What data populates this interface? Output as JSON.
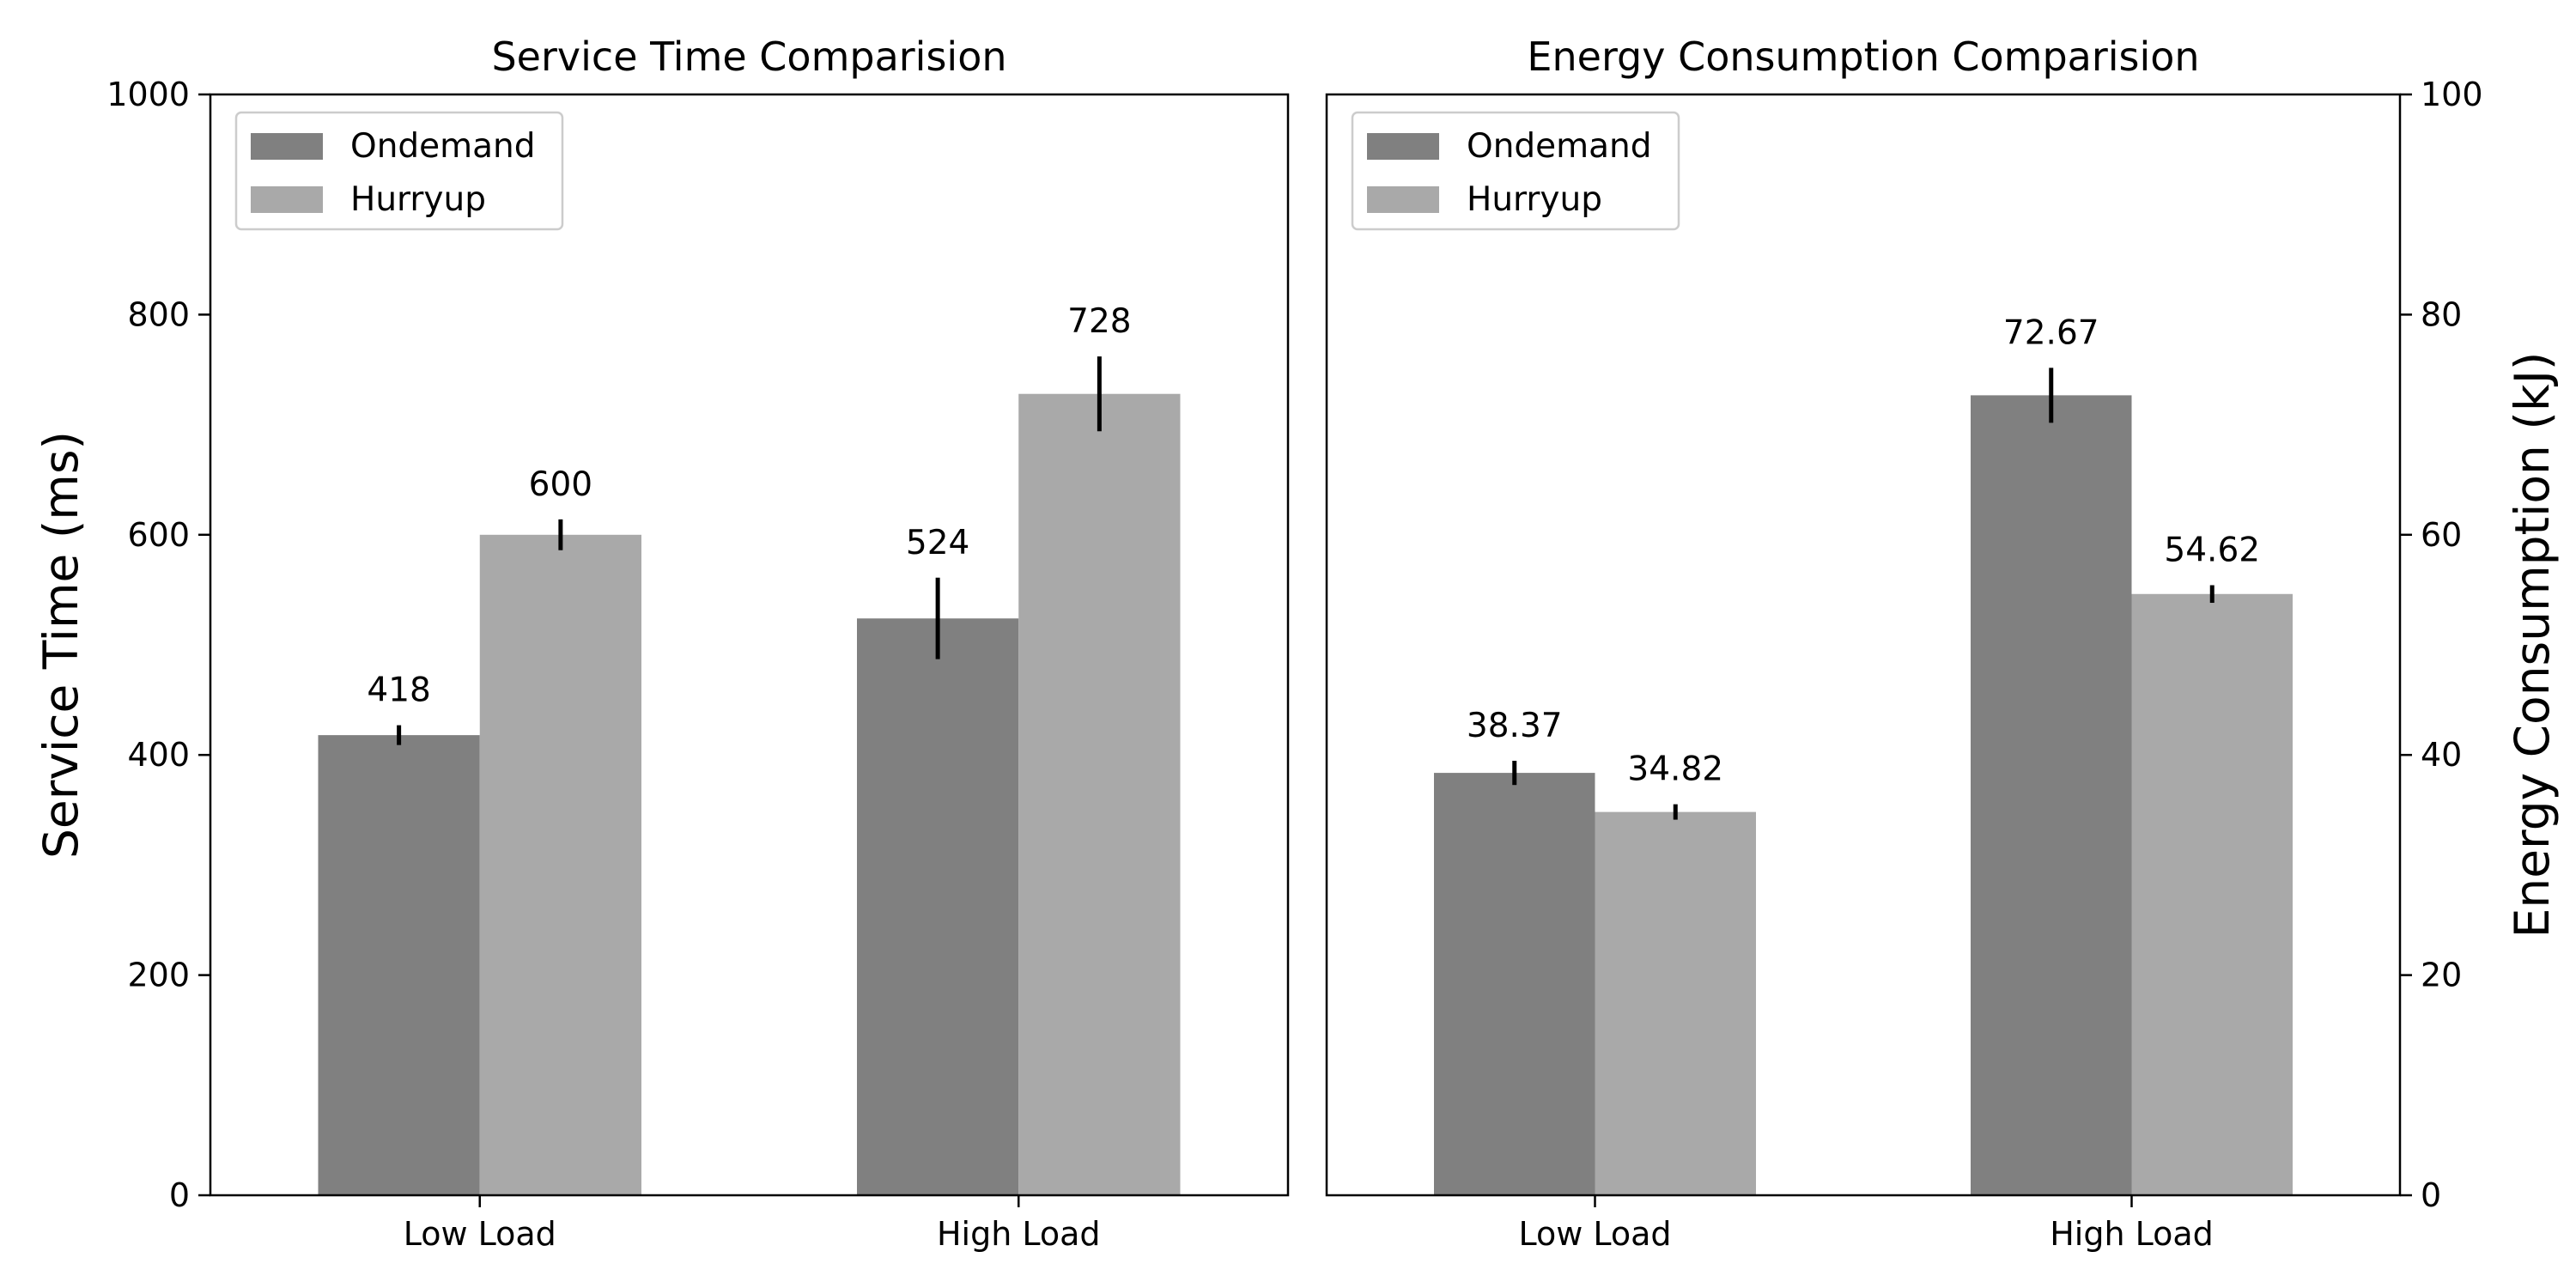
{
  "colors": {
    "Ondemand": "#808080",
    "Hurryup": "#a9a9a9",
    "error_bar": "#000000"
  },
  "chart_data": [
    {
      "type": "bar",
      "title": "Service Time Comparision",
      "xlabel": "",
      "ylabel": "Service Time (ms)",
      "y_axis_side": "left",
      "ylim": [
        0,
        1000
      ],
      "yticks": [
        0,
        200,
        400,
        600,
        800,
        1000
      ],
      "categories": [
        "Low Load",
        "High Load"
      ],
      "series": [
        {
          "name": "Ondemand",
          "values": [
            418,
            524
          ],
          "value_labels": [
            "418",
            "524"
          ],
          "errors": [
            9,
            37
          ]
        },
        {
          "name": "Hurryup",
          "values": [
            600,
            728
          ],
          "value_labels": [
            "600",
            "728"
          ],
          "errors": [
            14,
            34
          ]
        }
      ],
      "legend": "top-left",
      "grid": false
    },
    {
      "type": "bar",
      "title": "Energy Consumption Comparision",
      "xlabel": "",
      "ylabel": "Energy Consumption (kJ)",
      "y_axis_side": "right",
      "ylim": [
        0,
        100
      ],
      "yticks": [
        0,
        20,
        40,
        60,
        80,
        100
      ],
      "categories": [
        "Low Load",
        "High Load"
      ],
      "series": [
        {
          "name": "Ondemand",
          "values": [
            38.37,
            72.67
          ],
          "value_labels": [
            "38.37",
            "72.67"
          ],
          "errors": [
            1.1,
            2.5
          ]
        },
        {
          "name": "Hurryup",
          "values": [
            34.82,
            54.62
          ],
          "value_labels": [
            "34.82",
            "54.62"
          ],
          "errors": [
            0.7,
            0.8
          ]
        }
      ],
      "legend": "top-left",
      "grid": false
    }
  ]
}
